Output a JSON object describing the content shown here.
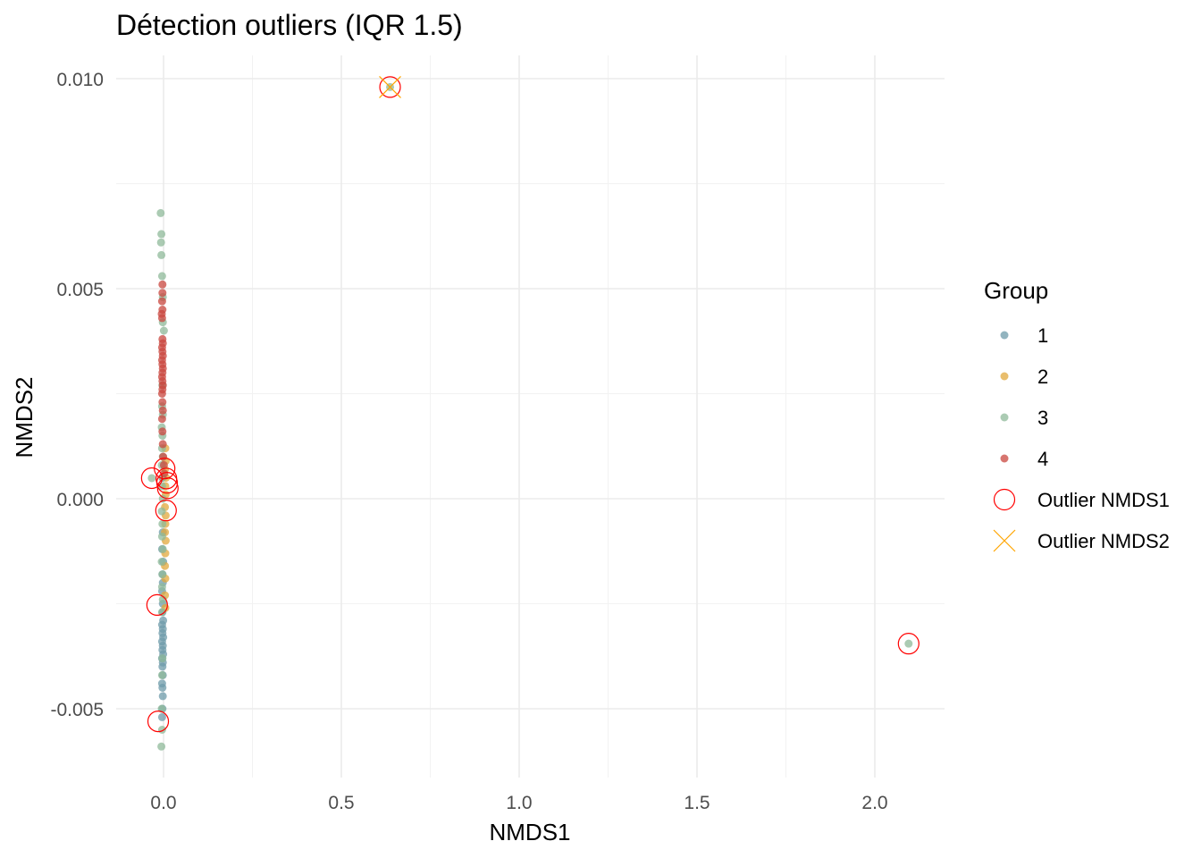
{
  "chart_data": {
    "type": "scatter",
    "title": "Détection outliers (IQR 1.5)",
    "xlabel": "NMDS1",
    "ylabel": "NMDS2",
    "xlim": [
      -0.13,
      2.2
    ],
    "ylim": [
      -0.0066,
      0.0106
    ],
    "x_ticks": [
      0.0,
      0.5,
      1.0,
      1.5,
      2.0
    ],
    "x_tick_labels": [
      "0.0",
      "0.5",
      "1.0",
      "1.5",
      "2.0"
    ],
    "y_ticks": [
      -0.005,
      0.0,
      0.005,
      0.01
    ],
    "y_tick_labels": [
      "-0.005",
      "0.000",
      "0.005",
      "0.010"
    ],
    "grid": true,
    "legend": {
      "title": "Group",
      "placement": "right",
      "entries": [
        "1",
        "2",
        "3",
        "4",
        "Outlier NMDS1",
        "Outlier NMDS2"
      ]
    },
    "series": [
      {
        "name": "1",
        "color": "#6E9BAA",
        "points": [
          [
            -0.003,
            0.0005
          ],
          [
            -0.002,
            -0.0008
          ],
          [
            -0.004,
            -0.0012
          ],
          [
            -0.001,
            -0.0015
          ],
          [
            -0.003,
            -0.0018
          ],
          [
            -0.002,
            -0.002
          ],
          [
            -0.004,
            -0.0022
          ],
          [
            -0.002,
            -0.0025
          ],
          [
            -0.003,
            -0.0027
          ],
          [
            -0.001,
            -0.0029
          ],
          [
            -0.004,
            -0.003
          ],
          [
            -0.002,
            -0.0031
          ],
          [
            -0.003,
            -0.0032
          ],
          [
            -0.001,
            -0.0033
          ],
          [
            -0.004,
            -0.0034
          ],
          [
            -0.002,
            -0.0035
          ],
          [
            -0.003,
            -0.0036
          ],
          [
            -0.001,
            -0.0037
          ],
          [
            -0.004,
            -0.0038
          ],
          [
            -0.002,
            -0.0039
          ],
          [
            -0.003,
            -0.004
          ],
          [
            -0.002,
            -0.0042
          ],
          [
            -0.004,
            -0.0044
          ],
          [
            -0.003,
            -0.0045
          ],
          [
            -0.002,
            -0.0047
          ],
          [
            -0.003,
            -0.005
          ],
          [
            -0.004,
            -0.0052
          ]
        ]
      },
      {
        "name": "2",
        "color": "#E2A83C",
        "points": [
          [
            0.005,
            0.0012
          ],
          [
            0.006,
            0.0009
          ],
          [
            0.004,
            0.0007
          ],
          [
            0.007,
            0.0005
          ],
          [
            0.005,
            0.0003
          ],
          [
            0.006,
            0.0001
          ],
          [
            0.004,
            -0.0002
          ],
          [
            0.006,
            -0.0004
          ],
          [
            0.005,
            -0.0006
          ],
          [
            0.004,
            -0.0008
          ],
          [
            0.006,
            -0.001
          ],
          [
            0.005,
            -0.0013
          ],
          [
            0.004,
            -0.0016
          ],
          [
            0.005,
            -0.0019
          ],
          [
            0.004,
            -0.0023
          ],
          [
            0.005,
            -0.0026
          ]
        ]
      },
      {
        "name": "3",
        "color": "#8FB99A",
        "points": [
          [
            -0.008,
            0.0068
          ],
          [
            -0.006,
            0.0063
          ],
          [
            -0.007,
            0.0061
          ],
          [
            -0.006,
            0.0058
          ],
          [
            -0.004,
            0.0053
          ],
          [
            -0.002,
            0.0048
          ],
          [
            -0.002,
            0.0042
          ],
          [
            0.001,
            0.004
          ],
          [
            -0.003,
            0.0027
          ],
          [
            -0.004,
            0.0022
          ],
          [
            -0.002,
            0.002
          ],
          [
            -0.005,
            0.0017
          ],
          [
            -0.003,
            0.0015
          ],
          [
            -0.004,
            0.0012
          ],
          [
            -0.002,
            0.001
          ],
          [
            -0.005,
            0.0008
          ],
          [
            -0.003,
            0.0005
          ],
          [
            -0.004,
            0.0003
          ],
          [
            -0.002,
            0.0
          ],
          [
            -0.005,
            -0.0003
          ],
          [
            -0.003,
            -0.0006
          ],
          [
            -0.004,
            -0.0009
          ],
          [
            -0.002,
            -0.0012
          ],
          [
            -0.005,
            -0.0015
          ],
          [
            -0.003,
            -0.0018
          ],
          [
            -0.004,
            -0.0021
          ],
          [
            -0.002,
            -0.0024
          ],
          [
            -0.004,
            -0.0027
          ],
          [
            -0.003,
            -0.0038
          ],
          [
            -0.004,
            -0.0042
          ],
          [
            -0.005,
            -0.005
          ],
          [
            -0.004,
            -0.0055
          ],
          [
            -0.006,
            -0.0059
          ],
          [
            -0.033,
            0.00049
          ],
          [
            0.637,
            0.0098
          ],
          [
            2.095,
            -0.00345
          ]
        ]
      },
      {
        "name": "4",
        "color": "#C9473F",
        "points": [
          [
            -0.003,
            0.0051
          ],
          [
            -0.003,
            0.0049
          ],
          [
            -0.004,
            0.0047
          ],
          [
            -0.003,
            0.0045
          ],
          [
            -0.005,
            0.0044
          ],
          [
            -0.004,
            0.0043
          ],
          [
            -0.003,
            0.0038
          ],
          [
            -0.002,
            0.0037
          ],
          [
            -0.004,
            0.0036
          ],
          [
            -0.003,
            0.0035
          ],
          [
            -0.002,
            0.0034
          ],
          [
            -0.004,
            0.0033
          ],
          [
            -0.003,
            0.0032
          ],
          [
            -0.002,
            0.0031
          ],
          [
            -0.003,
            0.003
          ],
          [
            -0.004,
            0.0029
          ],
          [
            -0.003,
            0.0028
          ],
          [
            -0.002,
            0.0027
          ],
          [
            -0.003,
            0.0026
          ],
          [
            -0.004,
            0.0025
          ],
          [
            -0.003,
            0.0023
          ],
          [
            -0.002,
            0.0021
          ],
          [
            -0.004,
            0.0019
          ],
          [
            -0.003,
            0.0016
          ],
          [
            -0.002,
            0.0013
          ],
          [
            -0.001,
            0.001
          ],
          [
            0.001,
            0.0008
          ],
          [
            0.002,
            0.0006
          ]
        ]
      }
    ],
    "outliers_nmds1": {
      "color": "#FF0000",
      "points": [
        [
          0.637,
          0.0098
        ],
        [
          2.095,
          -0.00345
        ],
        [
          -0.033,
          0.00049
        ],
        [
          0.003,
          0.00072
        ],
        [
          0.008,
          0.00048
        ],
        [
          0.01,
          0.00038
        ],
        [
          0.012,
          0.00025
        ],
        [
          0.007,
          -0.00028
        ],
        [
          -0.018,
          -0.00253
        ],
        [
          -0.015,
          -0.0053
        ]
      ]
    },
    "outliers_nmds2": {
      "color": "#FFA500",
      "points": [
        [
          0.637,
          0.0098
        ]
      ]
    }
  }
}
